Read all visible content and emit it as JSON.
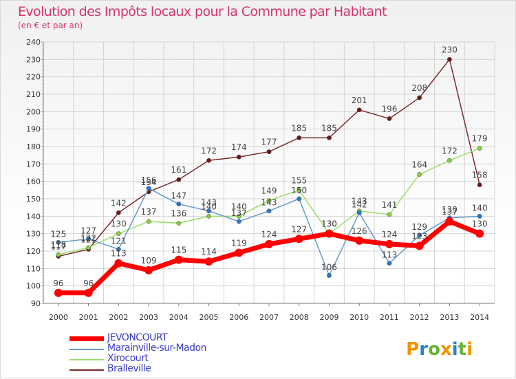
{
  "chart_data": {
    "type": "line",
    "title": "Evolution des Impôts locaux pour la Commune par Habitant",
    "subtitle": "(en € et par an)",
    "x": [
      "2000",
      "2001",
      "2002",
      "2003",
      "2004",
      "2005",
      "2006",
      "2007",
      "2008",
      "2009",
      "2010",
      "2011",
      "2012",
      "2013",
      "2014"
    ],
    "ylim": [
      90,
      240
    ],
    "yticks": [
      "90",
      "100",
      "110",
      "120",
      "130",
      "140",
      "150",
      "160",
      "170",
      "180",
      "190",
      "200",
      "210",
      "220",
      "230",
      "240"
    ],
    "grid": true,
    "legend_position": "bottom-left",
    "series": [
      {
        "name": "JEVONCOURT",
        "color": "#ff0000",
        "values": [
          96,
          96,
          113,
          109,
          115,
          114,
          119,
          124,
          127,
          130,
          126,
          124,
          123,
          137,
          130
        ]
      },
      {
        "name": "Marainville-sur-Madon",
        "color": "#6699cc",
        "values": [
          125,
          127,
          121,
          156,
          147,
          143,
          137,
          143,
          150,
          106,
          142,
          113,
          129,
          139,
          140
        ]
      },
      {
        "name": "Xirocourt",
        "color": "#99dd66",
        "values": [
          118,
          122,
          130,
          137,
          136,
          140,
          140,
          149,
          155,
          130,
          143,
          141,
          164,
          172,
          179
        ]
      },
      {
        "name": "Bralleville",
        "color": "#7a2a2a",
        "values": [
          117,
          121,
          142,
          154,
          161,
          172,
          174,
          177,
          185,
          185,
          201,
          196,
          208,
          230,
          158
        ]
      }
    ]
  },
  "logo": {
    "text": "Proxiti",
    "letters": [
      "P",
      "r",
      "o",
      "x",
      "i",
      "t",
      "i"
    ],
    "colors": [
      "#f29400",
      "#2a7fd4",
      "#69b234",
      "#f29400",
      "#2a7fd4",
      "#69b234",
      "#f29400"
    ]
  }
}
